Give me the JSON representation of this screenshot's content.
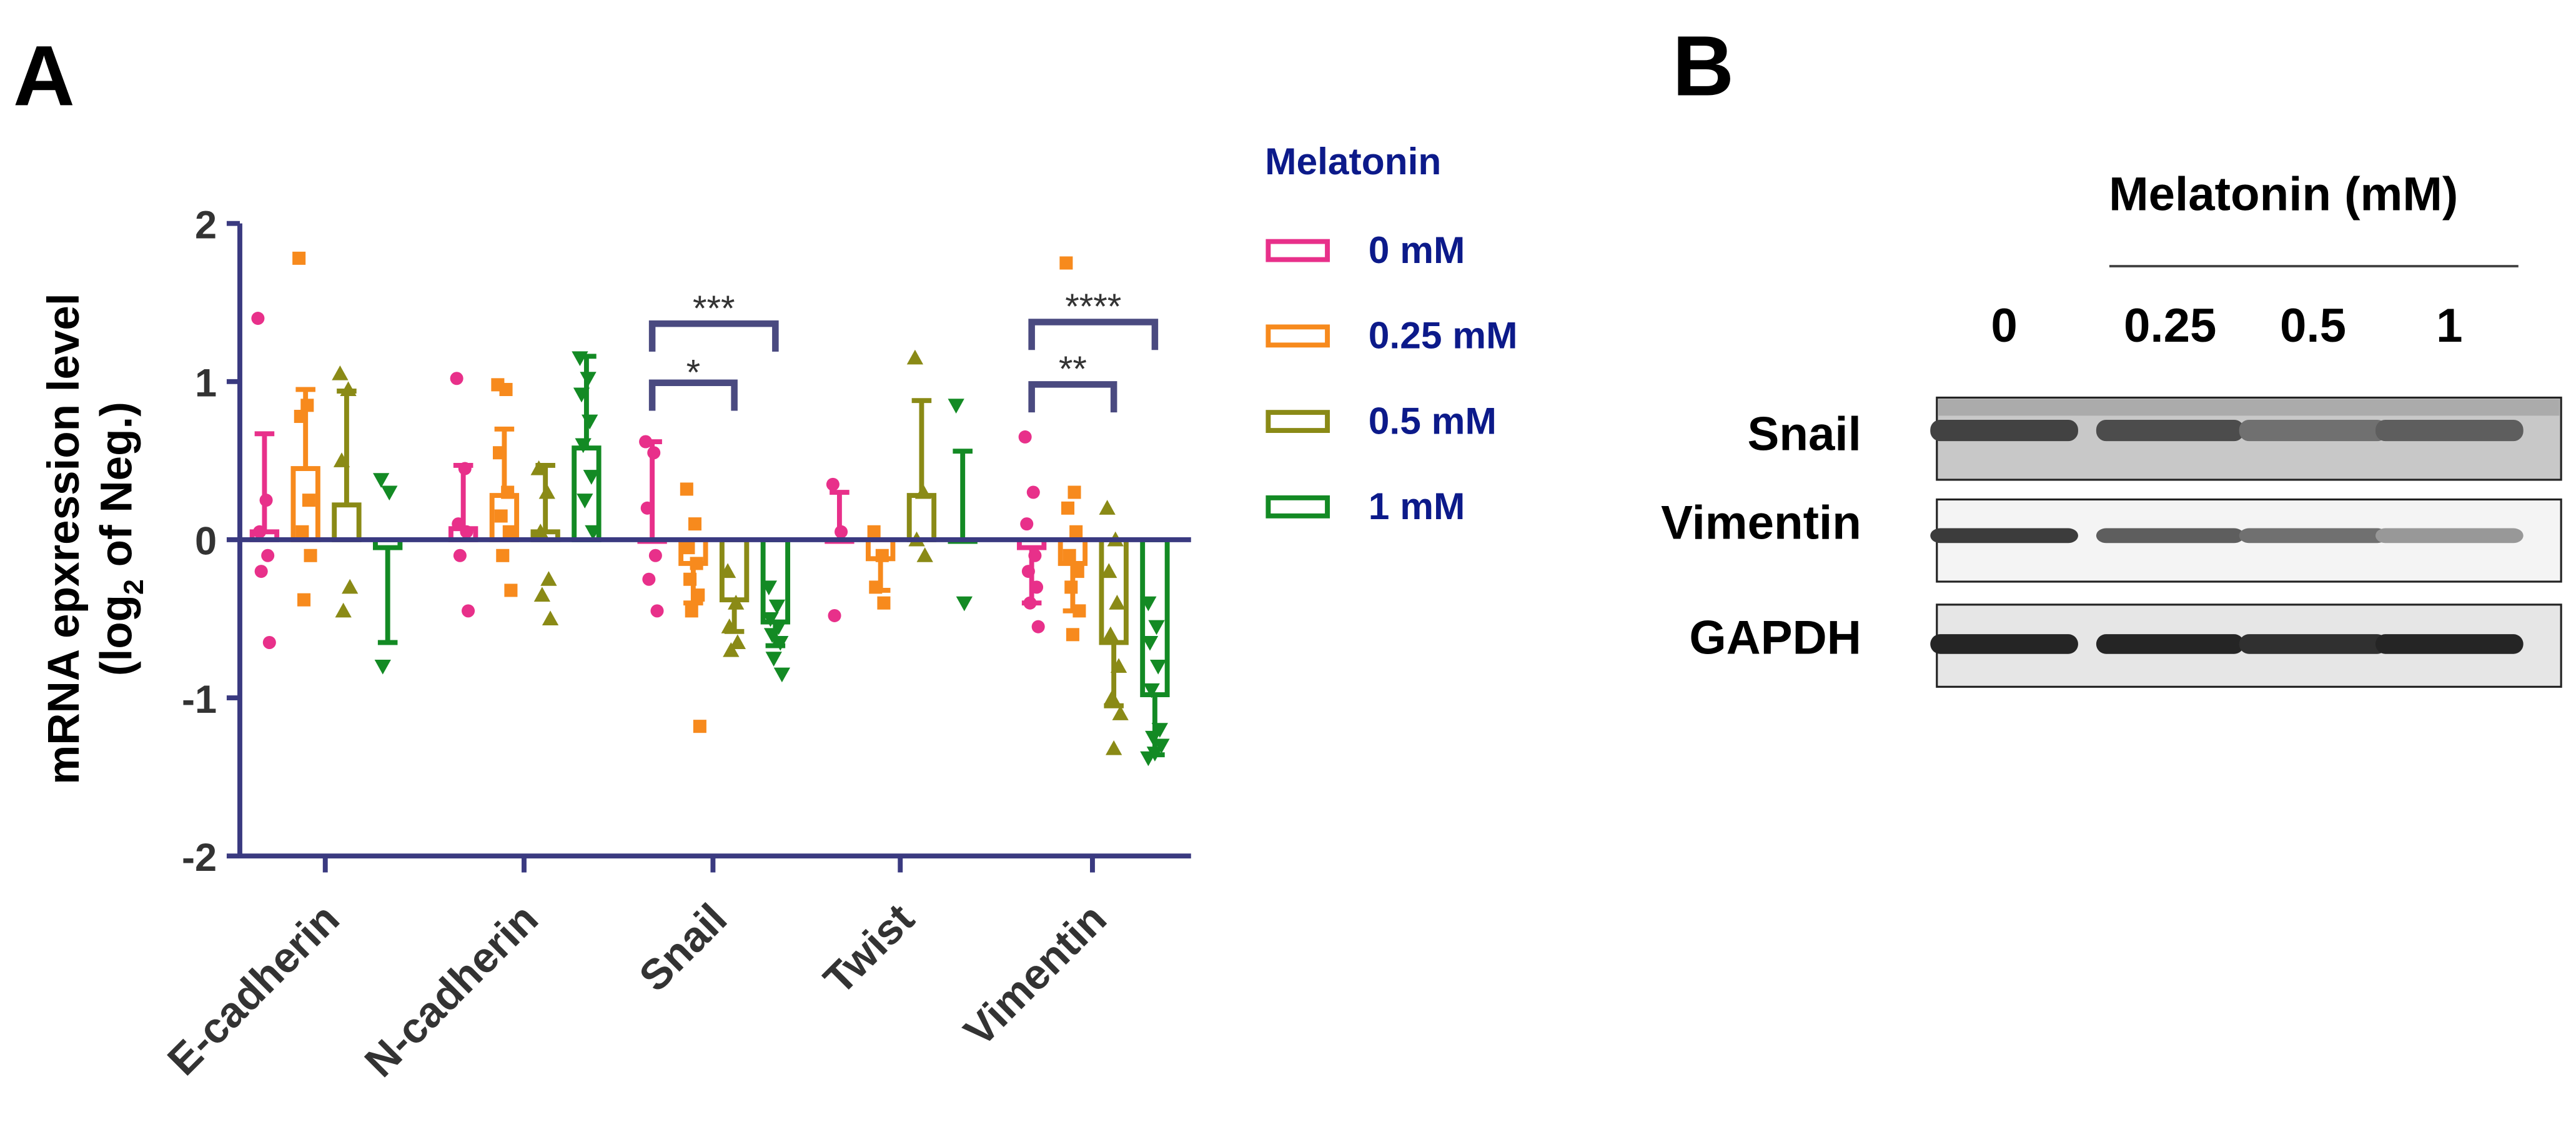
{
  "panel_a": {
    "letter": "A",
    "chart_data": {
      "type": "bar",
      "title": "",
      "xlabel": "",
      "ylabel_main": "mRNA epxression level",
      "ylabel_sub_prefix": "(log",
      "ylabel_sub_subscript": "2",
      "ylabel_sub_suffix": " of Neg.)",
      "ylim": [
        -2,
        2
      ],
      "yticks": [
        -2,
        -1,
        0,
        1,
        2
      ],
      "ytick_labels": [
        "-2",
        "-1",
        "0",
        "1",
        "2"
      ],
      "categories": [
        "E-cadherin",
        "N-cadherin",
        "Snail",
        "Twist",
        "Vimentin"
      ],
      "legend_title": "Melatonin",
      "series": [
        {
          "name": "0 mM",
          "color": "#e8308a",
          "marker": "circle",
          "means": [
            0.05,
            0.07,
            0.0,
            0.0,
            -0.05
          ],
          "sd": [
            0.62,
            0.4,
            0.62,
            0.3,
            0.35
          ],
          "points": [
            [
              1.4,
              0.25,
              0.05,
              -0.1,
              -0.2,
              -0.65
            ],
            [
              1.02,
              0.45,
              0.1,
              0.05,
              -0.1,
              -0.45
            ],
            [
              0.62,
              0.55,
              0.2,
              -0.1,
              -0.25,
              -0.45
            ],
            [
              0.35,
              0.05,
              -0.48
            ],
            [
              0.65,
              0.3,
              0.1,
              -0.1,
              -0.2,
              -0.3,
              -0.4,
              -0.55
            ]
          ]
        },
        {
          "name": "0.25 mM",
          "color": "#f78a1d",
          "marker": "square",
          "means": [
            0.45,
            0.28,
            -0.15,
            -0.12,
            -0.15
          ],
          "sd": [
            0.5,
            0.42,
            0.25,
            0.2,
            0.3
          ],
          "points": [
            [
              1.78,
              0.85,
              0.78,
              0.25,
              0.05,
              -0.1,
              -0.38
            ],
            [
              0.98,
              0.95,
              0.55,
              0.3,
              0.15,
              0.05,
              -0.1,
              -0.32
            ],
            [
              0.32,
              0.1,
              -0.05,
              -0.15,
              -0.25,
              -0.35,
              -0.45,
              -1.18
            ],
            [
              0.05,
              -0.1,
              -0.3,
              -0.4
            ],
            [
              1.75,
              0.3,
              0.2,
              0.05,
              -0.1,
              -0.2,
              -0.3,
              -0.45,
              -0.6
            ]
          ]
        },
        {
          "name": "0.5 mM",
          "color": "#8a8a16",
          "marker": "triangle-up",
          "means": [
            0.22,
            0.05,
            -0.38,
            0.28,
            -0.65
          ],
          "sd": [
            0.72,
            0.42,
            0.2,
            0.6,
            0.4
          ],
          "points": [
            [
              1.05,
              0.95,
              0.5,
              -0.3,
              -0.45
            ],
            [
              0.45,
              0.3,
              0.05,
              -0.25,
              -0.35,
              -0.5
            ],
            [
              -0.2,
              -0.4,
              -0.55,
              -0.65,
              -0.7
            ],
            [
              1.15,
              0.3,
              0.0,
              -0.1
            ],
            [
              0.2,
              0.0,
              -0.2,
              -0.4,
              -0.6,
              -0.8,
              -1.0,
              -1.1,
              -1.32
            ]
          ]
        },
        {
          "name": "1 mM",
          "color": "#138a24",
          "marker": "triangle-down",
          "means": [
            -0.05,
            0.58,
            -0.52,
            0.0,
            -0.98
          ],
          "sd": [
            0.6,
            0.58,
            0.15,
            0.56,
            0.38
          ],
          "points": [
            [
              0.38,
              0.3,
              -0.8
            ],
            [
              1.15,
              1.02,
              0.92,
              0.75,
              0.6,
              0.4,
              0.25,
              0.05
            ],
            [
              -0.3,
              -0.42,
              -0.5,
              -0.55,
              -0.6,
              -0.65,
              -0.75,
              -0.85
            ],
            [
              0.85,
              -0.4
            ],
            [
              -0.4,
              -0.55,
              -0.65,
              -0.8,
              -0.95,
              -1.2,
              -1.25,
              -1.3,
              -1.35,
              -1.38
            ]
          ]
        }
      ],
      "significance": [
        {
          "category": "Snail",
          "from_series": "0 mM",
          "to_series": "1 mM",
          "label": "***"
        },
        {
          "category": "Snail",
          "from_series": "0 mM",
          "to_series": "0.5 mM",
          "label": "*"
        },
        {
          "category": "Vimentin",
          "from_series": "0 mM",
          "to_series": "1 mM",
          "label": "****"
        },
        {
          "category": "Vimentin",
          "from_series": "0 mM",
          "to_series": "0.5 mM",
          "label": "**"
        }
      ],
      "axis_color": "#3a3a80",
      "legend_text_color": "#0c1a8a"
    }
  },
  "panel_b": {
    "letter": "B",
    "header": "Melatonin (mM)",
    "lanes": [
      "0",
      "0.25",
      "0.5",
      "1"
    ],
    "blots": [
      {
        "label": "Snail",
        "band_intensity": [
          0.82,
          0.78,
          0.62,
          0.7
        ]
      },
      {
        "label": "Vimentin",
        "band_intensity": [
          0.85,
          0.7,
          0.62,
          0.45
        ]
      },
      {
        "label": "GAPDH",
        "band_intensity": [
          0.95,
          0.95,
          0.9,
          0.95
        ]
      }
    ]
  }
}
